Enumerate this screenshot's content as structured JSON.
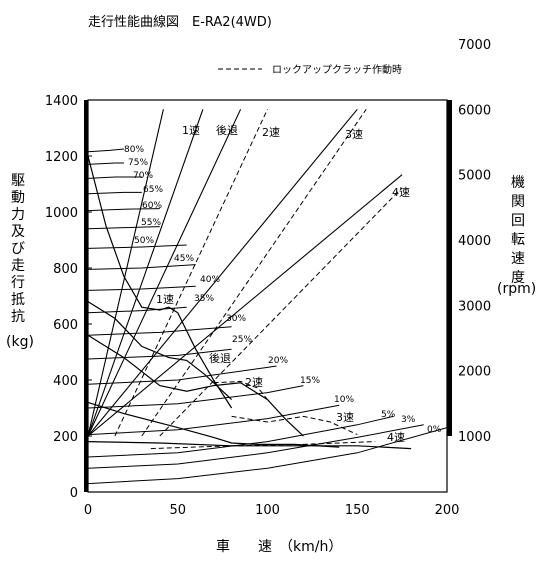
{
  "chart_data": {
    "type": "line",
    "title": "走行性能曲線図　E-RA2(4WD)",
    "legend": {
      "dashed_label": "ロックアップクラッチ作動時",
      "placement": "top-right"
    },
    "xlabel": "車　　速　（km/h）",
    "ylabel_left": [
      "駆",
      "動",
      "力",
      "及",
      "び",
      "走",
      "行",
      "抵",
      "抗"
    ],
    "ylabel_left_unit": "(kg)",
    "ylabel_right": [
      "機",
      "関",
      "回",
      "転",
      "速",
      "度"
    ],
    "ylabel_right_unit": "(rpm)",
    "xlim": [
      0,
      200
    ],
    "ylim": [
      0,
      1400
    ],
    "y2lim": [
      1000,
      7000
    ],
    "x_ticks": [
      "0",
      "50",
      "100",
      "150",
      "200"
    ],
    "y_ticks": [
      "0",
      "200",
      "400",
      "600",
      "800",
      "1000",
      "1200",
      "1400"
    ],
    "y2_ticks": [
      "1000",
      "2000",
      "3000",
      "4000",
      "5000",
      "6000",
      "7000"
    ],
    "grid": false,
    "gear_line_labels": [
      "1速",
      "後退",
      "2速",
      "3速",
      "4速"
    ],
    "drive_curve_labels": [
      "1速",
      "後退",
      "2速",
      "3速",
      "4速"
    ],
    "resistance_labels": [
      "80%",
      "75%",
      "70%",
      "65%",
      "60%",
      "55%",
      "50%",
      "45%",
      "40%",
      "35%",
      "30%",
      "25%",
      "20%",
      "15%",
      "10%",
      "5%",
      "3%",
      "0%"
    ],
    "rpm_lines_solid": [
      {
        "gear": "1速",
        "points": [
          [
            0,
            1000
          ],
          [
            42,
            6000
          ]
        ]
      },
      {
        "gear": "後退",
        "points": [
          [
            0,
            1000
          ],
          [
            64,
            6000
          ]
        ]
      },
      {
        "gear": "2速",
        "points": [
          [
            0,
            1000
          ],
          [
            85,
            6000
          ]
        ]
      },
      {
        "gear": "3速",
        "points": [
          [
            0,
            1000
          ],
          [
            150,
            6000
          ]
        ]
      },
      {
        "gear": "4速",
        "points": [
          [
            0,
            1000
          ],
          [
            175,
            5000
          ]
        ]
      }
    ],
    "rpm_lines_lockup": [
      {
        "gear": "2速",
        "points": [
          [
            15,
            1000
          ],
          [
            100,
            6000
          ]
        ]
      },
      {
        "gear": "3速",
        "points": [
          [
            30,
            1000
          ],
          [
            155,
            6000
          ]
        ]
      },
      {
        "gear": "4速",
        "points": [
          [
            40,
            1000
          ],
          [
            175,
            4800
          ]
        ]
      }
    ],
    "drive_force_solid": [
      {
        "gear": "1速",
        "points": [
          [
            0,
            1200
          ],
          [
            10,
            950
          ],
          [
            20,
            770
          ],
          [
            30,
            660
          ],
          [
            40,
            650
          ],
          [
            45,
            660
          ],
          [
            50,
            640
          ],
          [
            60,
            510
          ],
          [
            70,
            400
          ],
          [
            80,
            300
          ]
        ]
      },
      {
        "gear": "後退",
        "points": [
          [
            0,
            680
          ],
          [
            15,
            620
          ],
          [
            30,
            520
          ],
          [
            45,
            480
          ],
          [
            55,
            470
          ],
          [
            65,
            420
          ],
          [
            80,
            330
          ]
        ]
      },
      {
        "gear": "2速",
        "points": [
          [
            0,
            560
          ],
          [
            20,
            480
          ],
          [
            40,
            380
          ],
          [
            55,
            360
          ],
          [
            70,
            380
          ],
          [
            85,
            390
          ],
          [
            100,
            330
          ],
          [
            110,
            260
          ],
          [
            120,
            200
          ]
        ]
      },
      {
        "gear": "3速",
        "points": [
          [
            0,
            320
          ],
          [
            20,
            280
          ],
          [
            50,
            230
          ],
          [
            70,
            195
          ],
          [
            80,
            175
          ],
          [
            95,
            170
          ],
          [
            115,
            170
          ],
          [
            140,
            160
          ]
        ]
      },
      {
        "gear": "4速",
        "points": [
          [
            0,
            180
          ],
          [
            40,
            175
          ],
          [
            80,
            165
          ],
          [
            120,
            165
          ],
          [
            150,
            165
          ],
          [
            180,
            155
          ]
        ]
      }
    ],
    "drive_force_lockup": [
      {
        "gear": "2速",
        "points": [
          [
            70,
            390
          ],
          [
            85,
            395
          ],
          [
            95,
            370
          ],
          [
            100,
            330
          ]
        ]
      },
      {
        "gear": "3速",
        "points": [
          [
            80,
            270
          ],
          [
            100,
            250
          ],
          [
            120,
            270
          ],
          [
            135,
            250
          ],
          [
            150,
            205
          ]
        ]
      },
      {
        "gear": "4速",
        "points": [
          [
            35,
            155
          ],
          [
            80,
            165
          ],
          [
            120,
            170
          ],
          [
            160,
            180
          ]
        ]
      }
    ],
    "resistance_curves": [
      {
        "grade": "0%",
        "points": [
          [
            0,
            30
          ],
          [
            50,
            48
          ],
          [
            100,
            85
          ],
          [
            150,
            140
          ],
          [
            200,
            230
          ]
        ]
      },
      {
        "grade": "3%",
        "points": [
          [
            0,
            85
          ],
          [
            50,
            100
          ],
          [
            100,
            140
          ],
          [
            150,
            195
          ],
          [
            187,
            240
          ]
        ]
      },
      {
        "grade": "5%",
        "points": [
          [
            0,
            125
          ],
          [
            50,
            140
          ],
          [
            100,
            180
          ],
          [
            150,
            240
          ],
          [
            170,
            270
          ]
        ]
      },
      {
        "grade": "10%",
        "points": [
          [
            0,
            205
          ],
          [
            50,
            222
          ],
          [
            100,
            262
          ],
          [
            140,
            310
          ]
        ]
      },
      {
        "grade": "15%",
        "points": [
          [
            0,
            300
          ],
          [
            50,
            315
          ],
          [
            100,
            355
          ],
          [
            120,
            380
          ]
        ]
      },
      {
        "grade": "20%",
        "points": [
          [
            0,
            385
          ],
          [
            50,
            400
          ],
          [
            100,
            445
          ],
          [
            105,
            450
          ]
        ]
      },
      {
        "grade": "25%",
        "points": [
          [
            0,
            475
          ],
          [
            50,
            488
          ],
          [
            80,
            510
          ]
        ]
      },
      {
        "grade": "30%",
        "points": [
          [
            0,
            560
          ],
          [
            40,
            570
          ],
          [
            80,
            590
          ]
        ]
      },
      {
        "grade": "35%",
        "points": [
          [
            0,
            640
          ],
          [
            30,
            648
          ],
          [
            55,
            660
          ]
        ]
      },
      {
        "grade": "40%",
        "points": [
          [
            0,
            720
          ],
          [
            30,
            725
          ],
          [
            60,
            735
          ]
        ]
      },
      {
        "grade": "45%",
        "points": [
          [
            0,
            795
          ],
          [
            30,
            800
          ],
          [
            60,
            812
          ]
        ]
      },
      {
        "grade": "50%",
        "points": [
          [
            0,
            870
          ],
          [
            30,
            875
          ],
          [
            55,
            882
          ]
        ]
      },
      {
        "grade": "55%",
        "points": [
          [
            0,
            940
          ],
          [
            25,
            945
          ],
          [
            40,
            948
          ]
        ]
      },
      {
        "grade": "60%",
        "points": [
          [
            0,
            1005
          ],
          [
            20,
            1010
          ],
          [
            40,
            1012
          ]
        ]
      },
      {
        "grade": "65%",
        "points": [
          [
            0,
            1065
          ],
          [
            20,
            1070
          ],
          [
            30,
            1070
          ]
        ]
      },
      {
        "grade": "70%",
        "points": [
          [
            0,
            1120
          ],
          [
            15,
            1125
          ],
          [
            30,
            1125
          ]
        ]
      },
      {
        "grade": "75%",
        "points": [
          [
            0,
            1170
          ],
          [
            15,
            1175
          ],
          [
            20,
            1175
          ]
        ]
      },
      {
        "grade": "80%",
        "points": [
          [
            0,
            1215
          ],
          [
            12,
            1220
          ],
          [
            20,
            1225
          ]
        ]
      }
    ]
  }
}
